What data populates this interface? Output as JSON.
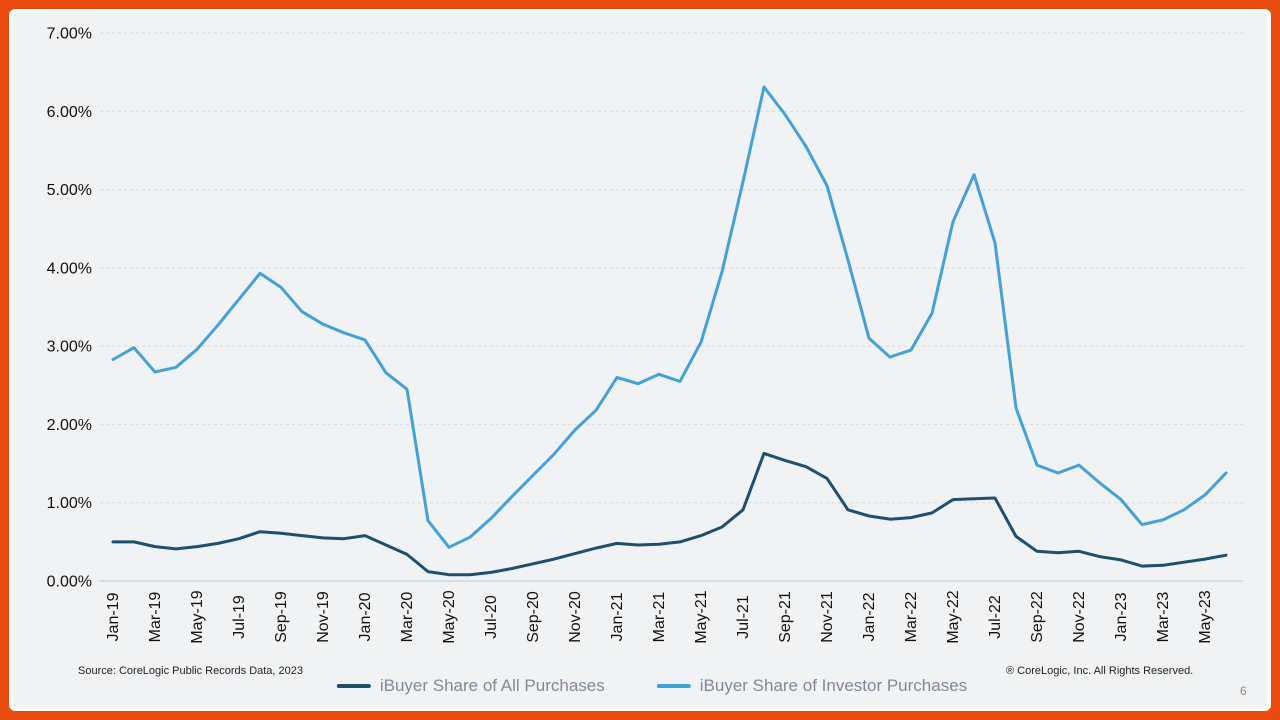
{
  "colors": {
    "border_orange": "#E8490D",
    "plot_background": "#F0F2F4",
    "frame_white": "#FCFBF7",
    "gridline": "#D7DBDE",
    "axis_line": "#C2C6C9",
    "axis_text": "#1F1F1F",
    "legend_text": "#7E8B96"
  },
  "footer": {
    "source": "Source: CoreLogic Public Records Data, 2023",
    "copyright": "® CoreLogic, Inc. All Rights Reserved.",
    "page_number": "6"
  },
  "chart_data": {
    "type": "line",
    "title": "",
    "xlabel": "",
    "ylabel": "",
    "ylim": [
      0,
      7
    ],
    "y_ticks": [
      "0.00%",
      "1.00%",
      "2.00%",
      "3.00%",
      "4.00%",
      "5.00%",
      "6.00%",
      "7.00%"
    ],
    "grid": "horizontal-dashed",
    "legend_position": "bottom-center",
    "x_tick_step": 2,
    "x": [
      "Jan-19",
      "Feb-19",
      "Mar-19",
      "Apr-19",
      "May-19",
      "Jun-19",
      "Jul-19",
      "Aug-19",
      "Sep-19",
      "Oct-19",
      "Nov-19",
      "Dec-19",
      "Jan-20",
      "Feb-20",
      "Mar-20",
      "Apr-20",
      "May-20",
      "Jun-20",
      "Jul-20",
      "Aug-20",
      "Sep-20",
      "Oct-20",
      "Nov-20",
      "Dec-20",
      "Jan-21",
      "Feb-21",
      "Mar-21",
      "Apr-21",
      "May-21",
      "Jun-21",
      "Jul-21",
      "Aug-21",
      "Sep-21",
      "Oct-21",
      "Nov-21",
      "Dec-21",
      "Jan-22",
      "Feb-22",
      "Mar-22",
      "Apr-22",
      "May-22",
      "Jun-22",
      "Jul-22",
      "Aug-22",
      "Sep-22",
      "Oct-22",
      "Nov-22",
      "Dec-22",
      "Jan-23",
      "Feb-23",
      "Mar-23",
      "Apr-23",
      "May-23",
      "Jun-23"
    ],
    "series": [
      {
        "name": "iBuyer Share of All Purchases",
        "color": "#1E4F6F",
        "values": [
          0.5,
          0.5,
          0.44,
          0.41,
          0.44,
          0.48,
          0.54,
          0.63,
          0.61,
          0.58,
          0.55,
          0.54,
          0.58,
          0.46,
          0.34,
          0.12,
          0.08,
          0.08,
          0.11,
          0.16,
          0.22,
          0.28,
          0.35,
          0.42,
          0.48,
          0.46,
          0.47,
          0.5,
          0.58,
          0.69,
          0.91,
          1.63,
          1.54,
          1.46,
          1.31,
          0.91,
          0.83,
          0.79,
          0.81,
          0.87,
          1.04,
          1.05,
          1.06,
          0.57,
          0.38,
          0.36,
          0.38,
          0.31,
          0.27,
          0.19,
          0.2,
          0.24,
          0.28,
          0.33
        ]
      },
      {
        "name": "iBuyer Share of Investor Purchases",
        "color": "#44A1D8",
        "values": [
          2.83,
          2.98,
          2.67,
          2.73,
          2.96,
          3.27,
          3.6,
          3.93,
          3.75,
          3.44,
          3.28,
          3.17,
          3.08,
          2.66,
          2.45,
          0.77,
          0.43,
          0.56,
          0.8,
          1.08,
          1.35,
          1.62,
          1.93,
          2.18,
          2.6,
          2.52,
          2.64,
          2.55,
          3.05,
          3.95,
          5.1,
          6.31,
          5.96,
          5.55,
          5.05,
          4.1,
          3.1,
          2.86,
          2.95,
          3.42,
          4.59,
          5.19,
          4.32,
          2.21,
          1.48,
          1.38,
          1.48,
          1.25,
          1.04,
          0.72,
          0.78,
          0.91,
          1.1,
          1.38
        ]
      }
    ]
  }
}
